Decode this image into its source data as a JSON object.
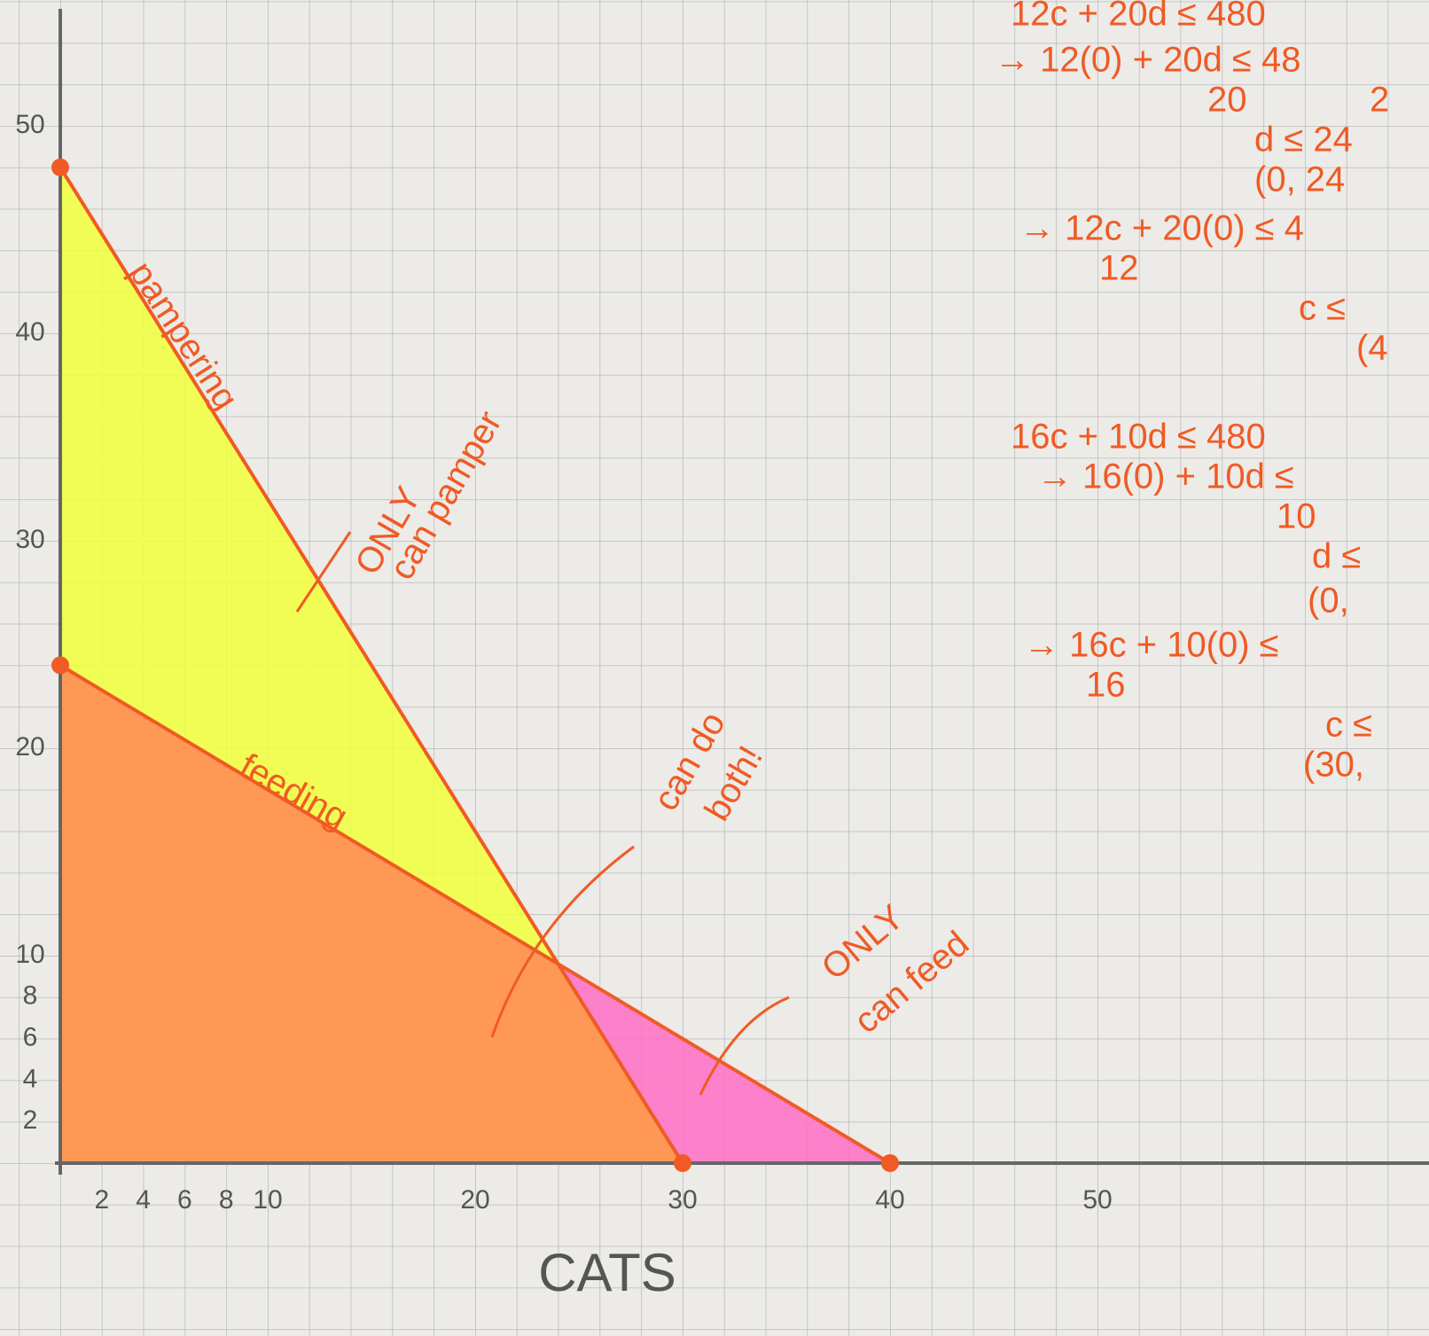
{
  "chart_data": {
    "type": "line",
    "x_label": "CATS",
    "xlim": [
      0,
      64.5
    ],
    "ylim": [
      0,
      55
    ],
    "xticks": [
      2,
      4,
      6,
      8,
      10,
      20,
      30,
      40,
      50
    ],
    "yticks": [
      2,
      4,
      6,
      8,
      10,
      20,
      30,
      40,
      50
    ],
    "overlap_color": "#ff9a4a",
    "series": [
      {
        "name": "pampering",
        "color": "#f05a24",
        "fill": "#f2ff3a",
        "x": [
          0,
          30
        ],
        "values": [
          48,
          0
        ]
      },
      {
        "name": "feeding",
        "color": "#f05a24",
        "fill": "#ff6fc4",
        "x": [
          0,
          40
        ],
        "values": [
          24,
          0
        ]
      }
    ],
    "annotations": [
      "ONLY",
      "can pamper",
      "can do",
      "both!",
      "ONLY",
      "can feed"
    ],
    "notes": [
      "12c + 20d ≤ 480",
      "→ 12(0) + 20d ≤ 48",
      "20",
      "2",
      "d ≤ 24",
      "(0, 24",
      "→ 12c + 20(0) ≤ 4",
      "12",
      "c ≤",
      "(4",
      "16c + 10d ≤ 480",
      "→ 16(0) + 10d ≤",
      "10",
      "d ≤",
      "(0,",
      "→ 16c + 10(0) ≤",
      "16",
      "c ≤",
      "(30,"
    ]
  }
}
